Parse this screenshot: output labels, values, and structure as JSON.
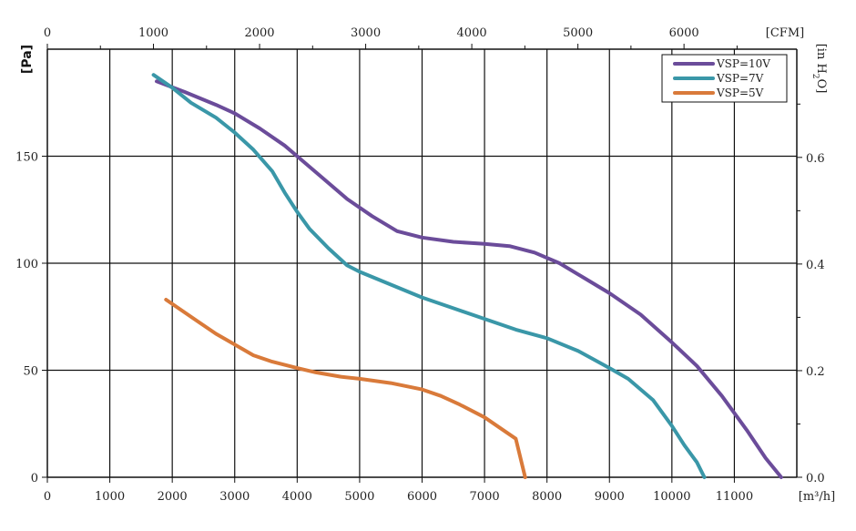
{
  "chart_data": {
    "type": "line",
    "axes": {
      "bottom": {
        "label": "[m³/h]",
        "range": [
          0,
          12000
        ],
        "ticks": [
          0,
          1000,
          2000,
          3000,
          4000,
          5000,
          6000,
          7000,
          8000,
          9000,
          10000,
          11000
        ]
      },
      "top": {
        "label": "[CFM]",
        "range": [
          0,
          7063
        ],
        "ticks": [
          0,
          1000,
          2000,
          3000,
          4000,
          5000,
          6000
        ]
      },
      "left": {
        "label": "[Pa]",
        "range": [
          0,
          200
        ],
        "ticks": [
          0,
          50,
          100,
          150
        ]
      },
      "right": {
        "label_parts": [
          "[in H",
          "2",
          "O]"
        ],
        "range": [
          0,
          0.803
        ],
        "ticks": [
          0.0,
          0.2,
          0.4,
          0.6
        ]
      }
    },
    "x_grid_step": 1000,
    "y_grid_step": 50,
    "right_minor_ticks": [
      0.1,
      0.3,
      0.5,
      0.7
    ],
    "top_minor_ticks": [
      500,
      1500,
      2500,
      3500,
      4500,
      5500,
      6500
    ],
    "legend_position": "top-right",
    "series": [
      {
        "name": "VSP=10V",
        "color": "#6b4c9a",
        "points": [
          [
            1750,
            185
          ],
          [
            2200,
            180
          ],
          [
            2700,
            174
          ],
          [
            3000,
            170
          ],
          [
            3400,
            163
          ],
          [
            3800,
            155
          ],
          [
            4000,
            150
          ],
          [
            4400,
            140
          ],
          [
            4800,
            130
          ],
          [
            5200,
            122
          ],
          [
            5600,
            115
          ],
          [
            6000,
            112
          ],
          [
            6500,
            110
          ],
          [
            7000,
            109
          ],
          [
            7400,
            108
          ],
          [
            7800,
            105
          ],
          [
            8200,
            100
          ],
          [
            8600,
            93
          ],
          [
            9000,
            86
          ],
          [
            9500,
            76
          ],
          [
            10000,
            63
          ],
          [
            10400,
            52
          ],
          [
            10800,
            38
          ],
          [
            11200,
            22
          ],
          [
            11500,
            9
          ],
          [
            11750,
            0
          ]
        ]
      },
      {
        "name": "VSP=7V",
        "color": "#3a97a8",
        "points": [
          [
            1700,
            188
          ],
          [
            2000,
            182
          ],
          [
            2300,
            175
          ],
          [
            2700,
            168
          ],
          [
            3000,
            161
          ],
          [
            3300,
            153
          ],
          [
            3600,
            143
          ],
          [
            3800,
            133
          ],
          [
            4000,
            124
          ],
          [
            4200,
            116
          ],
          [
            4500,
            107
          ],
          [
            4800,
            99
          ],
          [
            5000,
            96
          ],
          [
            5500,
            90
          ],
          [
            6000,
            84
          ],
          [
            6500,
            79
          ],
          [
            7000,
            74
          ],
          [
            7500,
            69
          ],
          [
            8000,
            65
          ],
          [
            8500,
            59
          ],
          [
            9000,
            51
          ],
          [
            9300,
            46
          ],
          [
            9700,
            36
          ],
          [
            10000,
            24
          ],
          [
            10200,
            15
          ],
          [
            10400,
            7
          ],
          [
            10520,
            0
          ]
        ]
      },
      {
        "name": "VSP=5V",
        "color": "#d97a3a",
        "points": [
          [
            1900,
            83
          ],
          [
            2100,
            79
          ],
          [
            2400,
            73
          ],
          [
            2700,
            67
          ],
          [
            3000,
            62
          ],
          [
            3300,
            57
          ],
          [
            3600,
            54
          ],
          [
            4000,
            51
          ],
          [
            4300,
            49
          ],
          [
            4700,
            47
          ],
          [
            5000,
            46
          ],
          [
            5500,
            44
          ],
          [
            6000,
            41
          ],
          [
            6300,
            38
          ],
          [
            6600,
            34
          ],
          [
            7000,
            28
          ],
          [
            7300,
            22
          ],
          [
            7500,
            18
          ],
          [
            7650,
            0
          ]
        ]
      }
    ]
  }
}
